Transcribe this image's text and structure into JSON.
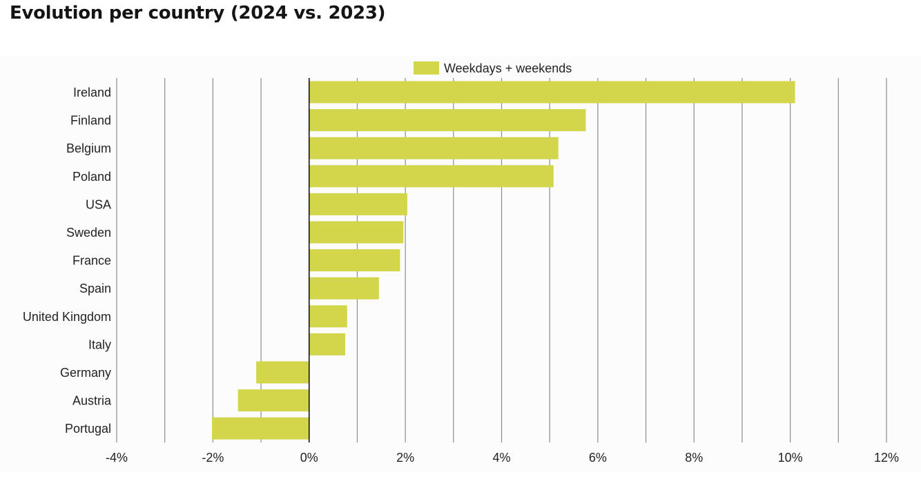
{
  "title": "Evolution per country (2024 vs. 2023)",
  "chart_data": {
    "type": "bar",
    "orientation": "horizontal",
    "categories": [
      "Ireland",
      "Finland",
      "Belgium",
      "Poland",
      "USA",
      "Sweden",
      "France",
      "Spain",
      "United Kingdom",
      "Italy",
      "Germany",
      "Austria",
      "Portugal"
    ],
    "series": [
      {
        "name": "Weekdays + weekends",
        "color": "#d3d64a",
        "values": [
          10.1,
          5.75,
          5.18,
          5.08,
          2.04,
          1.96,
          1.89,
          1.45,
          0.79,
          0.75,
          -1.1,
          -1.48,
          -2.02
        ]
      }
    ],
    "xlim": [
      -4,
      12
    ],
    "xticks": [
      -4,
      -2,
      0,
      2,
      4,
      6,
      8,
      10,
      12
    ],
    "xtick_labels": [
      "-4%",
      "-2%",
      "0%",
      "2%",
      "4%",
      "6%",
      "8%",
      "10%",
      "12%"
    ],
    "gridlines": [
      -4,
      -3,
      -2,
      -1,
      0,
      1,
      2,
      3,
      4,
      5,
      6,
      7,
      8,
      9,
      10,
      11,
      12
    ],
    "grid": true,
    "legend": "top-center",
    "xlabel": "",
    "ylabel": ""
  }
}
